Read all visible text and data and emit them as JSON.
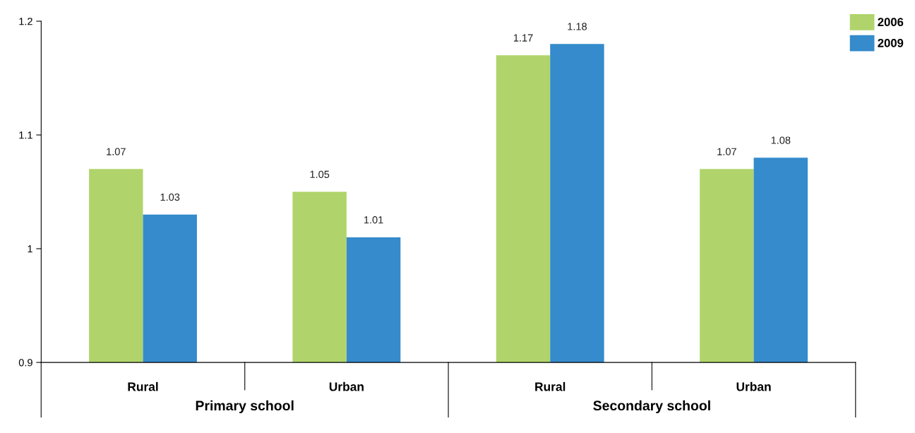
{
  "chart_data": {
    "type": "bar",
    "categories": [
      "Rural",
      "Urban",
      "Rural",
      "Urban"
    ],
    "series": [
      {
        "name": "2006",
        "color": "#b0d46b",
        "values": [
          1.07,
          1.05,
          1.17,
          1.07
        ]
      },
      {
        "name": "2009",
        "color": "#358bcb",
        "values": [
          1.03,
          1.01,
          1.18,
          1.08
        ]
      }
    ],
    "annotations": [
      "Primary school",
      "Secondary school"
    ],
    "ylim": [
      0.9,
      1.2
    ],
    "yticks": [
      0.9,
      1,
      1.1,
      1.2
    ],
    "data_labels": true,
    "legend": "top right",
    "grid": false
  }
}
